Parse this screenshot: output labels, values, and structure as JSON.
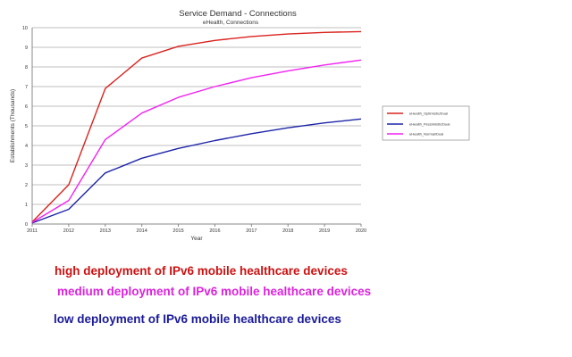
{
  "chart_data": {
    "type": "line",
    "title": "Service Demand - Connections",
    "subtitle": "eHealth, Connections",
    "xlabel": "Year",
    "ylabel": "Establishments (Thousands)",
    "x": [
      2011,
      2012,
      2013,
      2014,
      2015,
      2016,
      2017,
      2018,
      2019,
      2020
    ],
    "ylim": [
      0,
      10
    ],
    "yticks": [
      0,
      1,
      2,
      3,
      4,
      5,
      6,
      7,
      8,
      9,
      10
    ],
    "grid": true,
    "legend_position": "right",
    "series": [
      {
        "name": "eHealth_Optimistic/Dual",
        "color": "#d9231e",
        "values": [
          0.1,
          2.0,
          6.9,
          8.45,
          9.05,
          9.35,
          9.55,
          9.68,
          9.76,
          9.8
        ]
      },
      {
        "name": "eHealth_Pessimistic/Dual",
        "color": "#1c24a8",
        "values": [
          0.05,
          0.75,
          2.6,
          3.35,
          3.85,
          4.25,
          4.6,
          4.9,
          5.15,
          5.35
        ]
      },
      {
        "name": "eHealth_Normal/Dual",
        "color": "#f223f2",
        "values": [
          0.08,
          1.2,
          4.3,
          5.65,
          6.45,
          7.0,
          7.45,
          7.8,
          8.1,
          8.35
        ]
      }
    ]
  },
  "captions": {
    "high": "high deployment of IPv6 mobile healthcare devices",
    "medium": "medium deployment of IPv6 mobile healthcare devices",
    "low": "low deployment of IPv6 mobile healthcare devices"
  },
  "caption_colors": {
    "high": "#cc1111",
    "medium": "#dd22dd",
    "low": "#1a1a99"
  }
}
